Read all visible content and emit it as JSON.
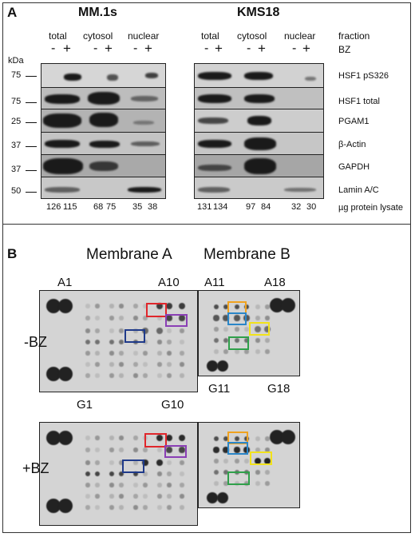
{
  "panelA": {
    "letter": "A",
    "cell_line_left": "MM.1s",
    "cell_line_right": "KMS18",
    "fractions": [
      "total",
      "cytosol",
      "nuclear"
    ],
    "fraction_label": "fraction",
    "bz_label": "BZ",
    "minus": "-",
    "plus": "+",
    "kda_label": "kDa",
    "rows": [
      {
        "marker": "75",
        "protein": "HSF1 pS326"
      },
      {
        "marker": "75",
        "protein": "HSF1 total"
      },
      {
        "marker": "25",
        "protein": "PGAM1"
      },
      {
        "marker": "37",
        "protein": "β-Actin"
      },
      {
        "marker": "37",
        "protein": "GAPDH"
      },
      {
        "marker": "50",
        "protein": "Lamin A/C"
      }
    ],
    "lysate_left": [
      "126",
      "115",
      "68",
      "75",
      "35",
      "38"
    ],
    "lysate_right": [
      "131",
      "134",
      "97",
      "84",
      "32",
      "30"
    ],
    "lysate_label": "µg protein lysate"
  },
  "panelB": {
    "letter": "B",
    "membrane_a": "Membrane A",
    "membrane_b": "Membrane B",
    "a1": "A1",
    "a10": "A10",
    "a11": "A11",
    "a18": "A18",
    "g1": "G1",
    "g10": "G10",
    "g11": "G11",
    "g18": "G18",
    "minus_bz": "-BZ",
    "plus_bz": "+BZ"
  },
  "colors": {
    "red": "#e0262b",
    "purple": "#8a3fb5",
    "navy": "#1f3a8a",
    "orange": "#f0a21f",
    "blue": "#2a86c8",
    "yellow": "#f2e21a",
    "green": "#2fa04a"
  }
}
